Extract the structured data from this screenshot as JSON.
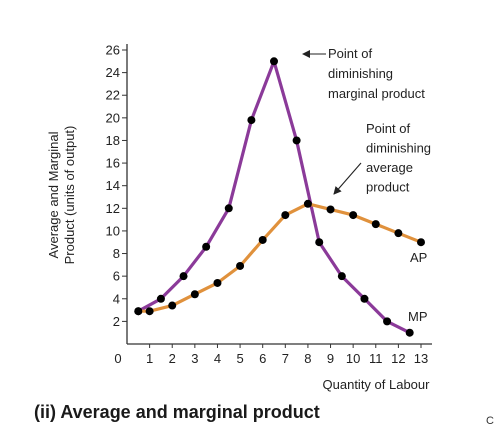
{
  "chart_data": {
    "type": "line",
    "title": "",
    "xlabel": "Quantity of Labour",
    "ylabel": [
      "Average and Marginal",
      "Product (units of output)"
    ],
    "xlim": [
      0,
      13
    ],
    "ylim": [
      0,
      26
    ],
    "x_ticks": [
      0,
      1,
      2,
      3,
      4,
      5,
      6,
      7,
      8,
      9,
      10,
      11,
      12,
      13
    ],
    "y_ticks": [
      2,
      4,
      6,
      8,
      10,
      12,
      14,
      16,
      18,
      20,
      22,
      24,
      26
    ],
    "grid": false,
    "series": [
      {
        "name": "MP",
        "color": "#8b3a99",
        "x": [
          0.5,
          1.5,
          2.5,
          3.5,
          4.5,
          5.5,
          6.5,
          7.5,
          8.5,
          9.5,
          10.5,
          11.5,
          12.5
        ],
        "y": [
          2.9,
          4.0,
          6.0,
          8.6,
          12.0,
          19.8,
          25.0,
          18.0,
          9.0,
          6.0,
          4.0,
          2.0,
          1.0
        ]
      },
      {
        "name": "AP",
        "color": "#e0913c",
        "x": [
          0.5,
          1.0,
          2.0,
          3.0,
          4.0,
          5.0,
          6.0,
          7.0,
          8.0,
          9.0,
          10.0,
          11.0,
          12.0,
          13.0
        ],
        "y": [
          2.9,
          2.9,
          3.4,
          4.4,
          5.4,
          6.9,
          9.2,
          11.4,
          12.4,
          11.9,
          11.4,
          10.6,
          9.8,
          9.0
        ]
      }
    ],
    "annotations": [
      {
        "text": [
          "Point of",
          "diminishing",
          "marginal product"
        ],
        "target_x": 6.5,
        "target_y": 25.0
      },
      {
        "text": [
          "Point of",
          "diminishing",
          "average",
          "product"
        ],
        "target_x": 8.0,
        "target_y": 12.4
      }
    ]
  },
  "caption": "(ii) Average and marginal product",
  "corner_text": "C"
}
